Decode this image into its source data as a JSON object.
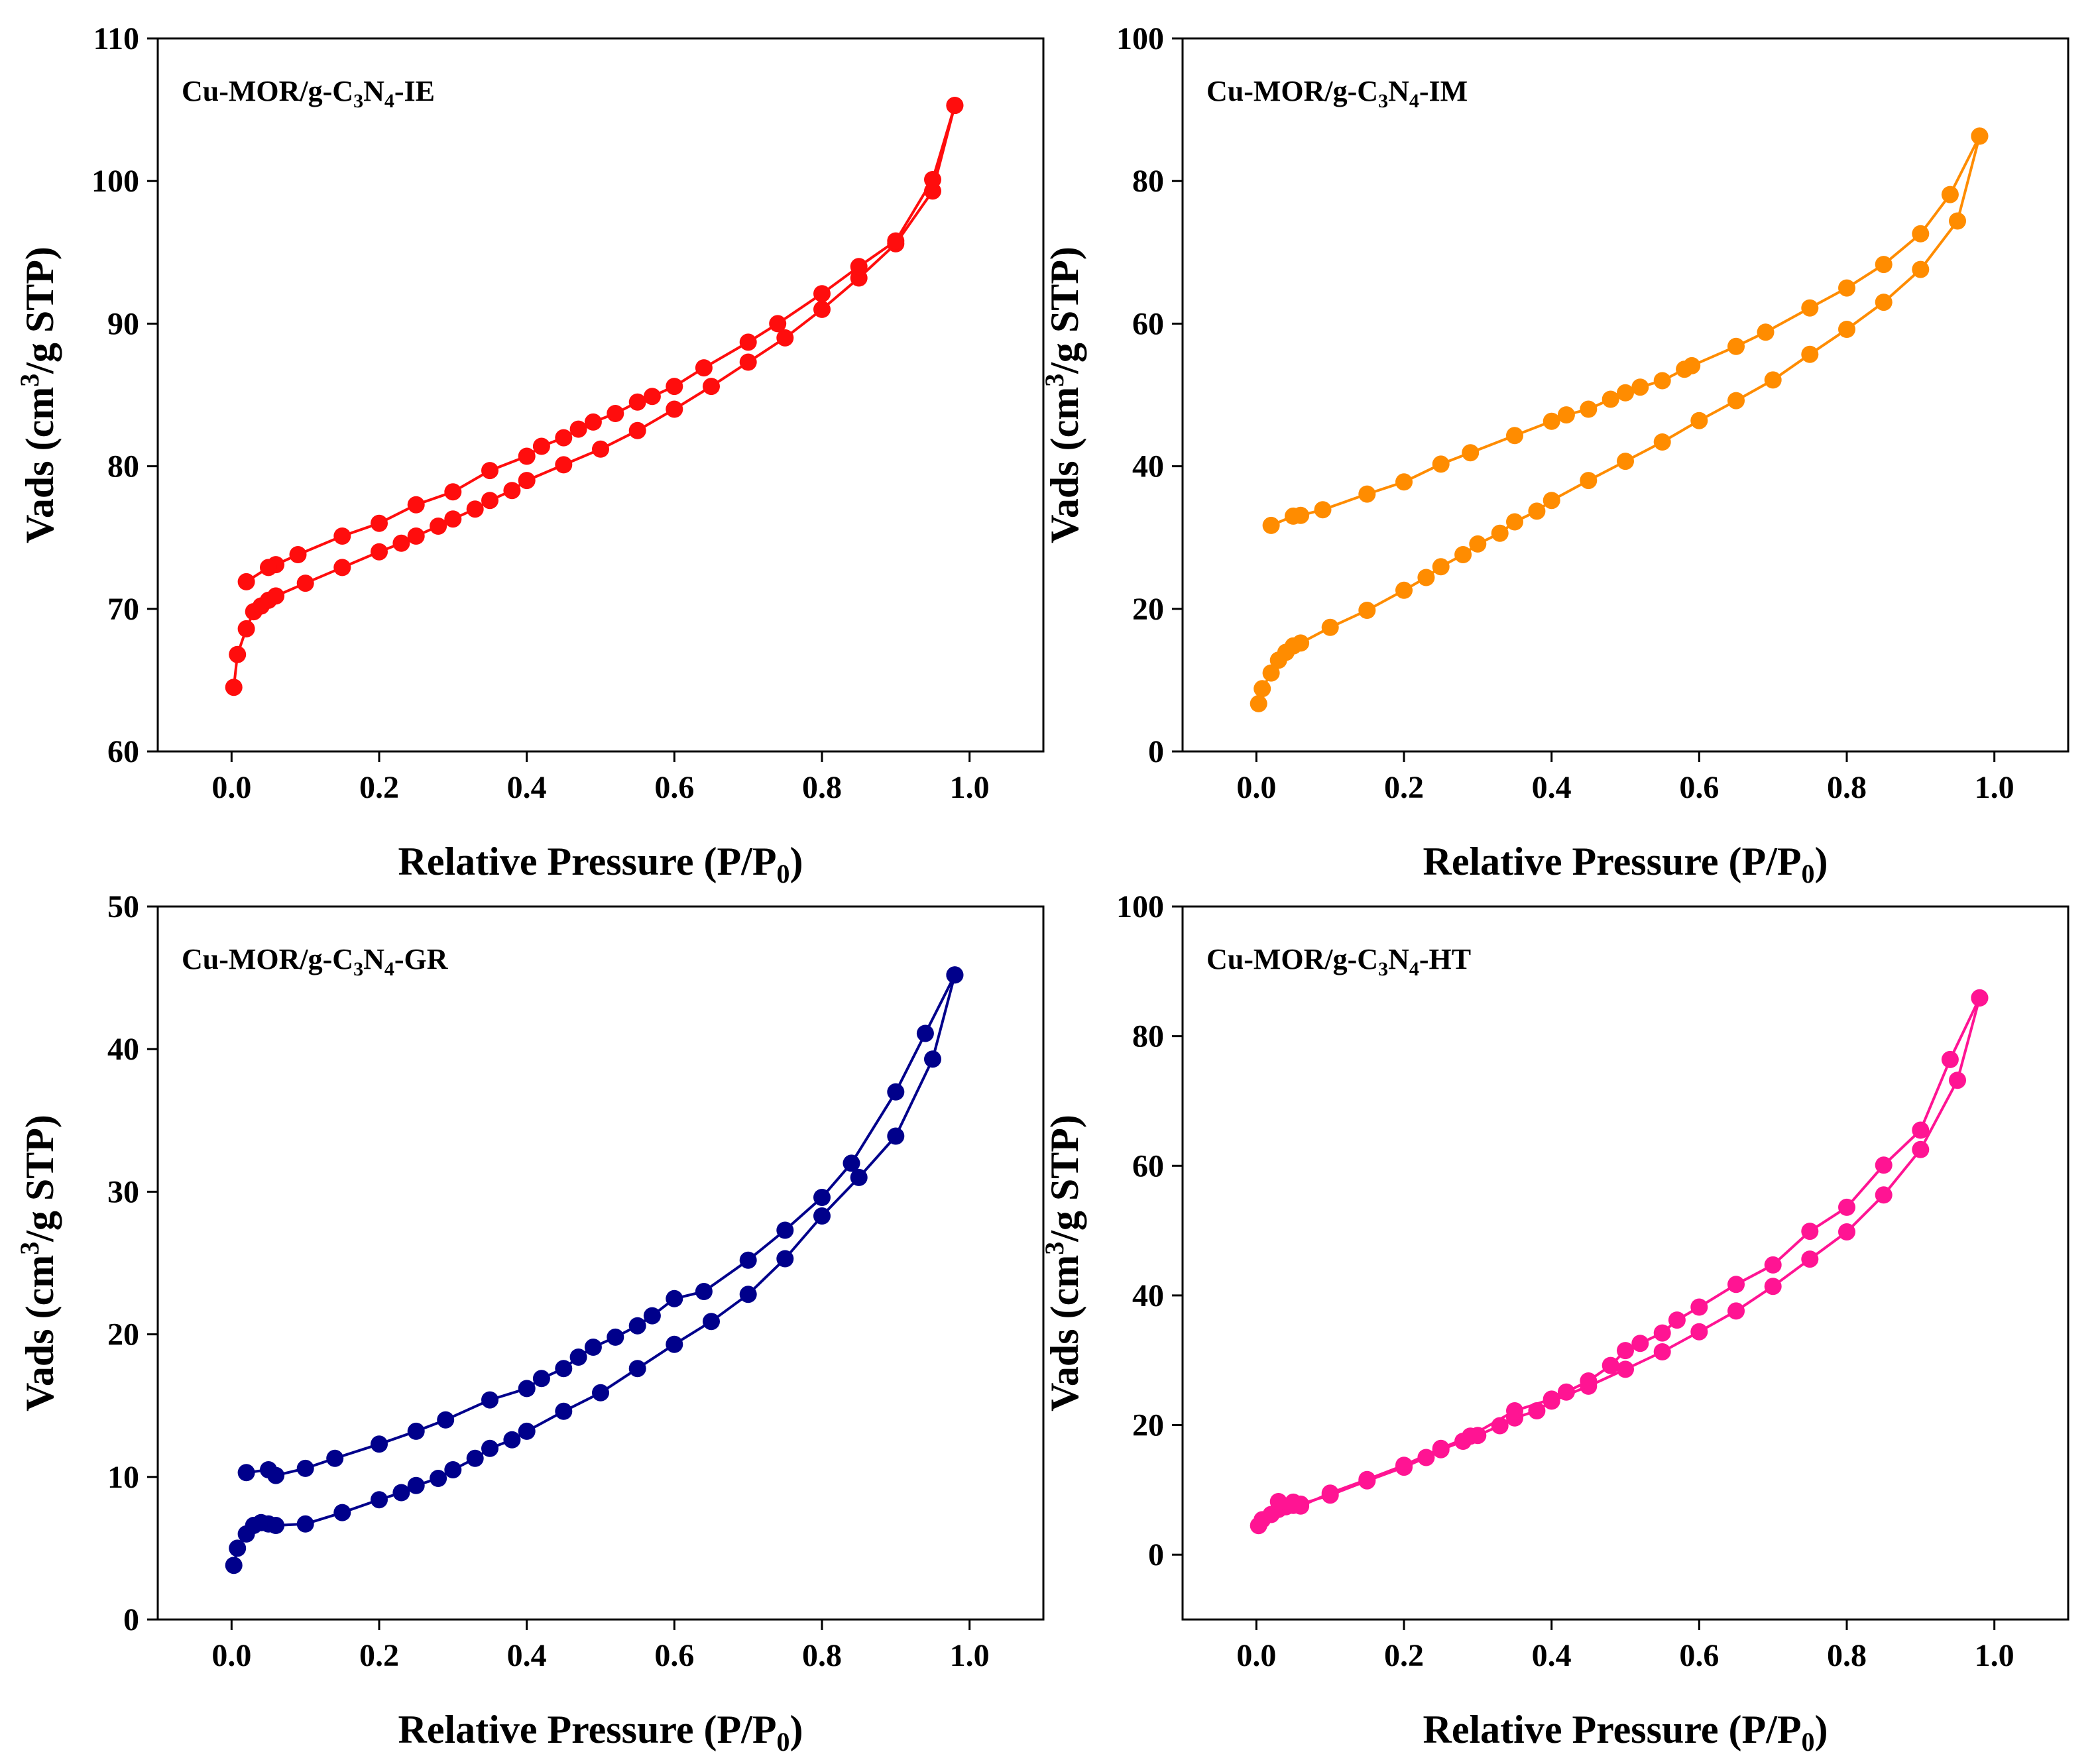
{
  "chart_data": [
    {
      "type": "scatter",
      "label_prefix": "Cu-MOR/g-C",
      "label_sub1": "3",
      "label_mid": "N",
      "label_sub2": "4",
      "label_suffix": "-IE",
      "xlabel_main": "Relative Pressure (P/P",
      "xlabel_sub": "0",
      "xlabel_end": ")",
      "ylabel_main": "Vads (cm",
      "ylabel_sup": "3",
      "ylabel_end": "/g STP)",
      "xlim": [
        -0.1,
        1.1
      ],
      "ylim": [
        60,
        110
      ],
      "xticks": [
        0.0,
        0.2,
        0.4,
        0.6,
        0.8,
        1.0
      ],
      "xtick_labels": [
        "0.0",
        "0.2",
        "0.4",
        "0.6",
        "0.8",
        "1.0"
      ],
      "yticks": [
        60,
        70,
        80,
        90,
        100,
        110
      ],
      "ytick_labels": [
        "60",
        "70",
        "80",
        "90",
        "100",
        "110"
      ],
      "color": "#ff0d0d",
      "series": [
        {
          "name": "adsorption",
          "x": [
            0.003,
            0.008,
            0.02,
            0.03,
            0.04,
            0.05,
            0.06,
            0.1,
            0.15,
            0.2,
            0.23,
            0.25,
            0.28,
            0.3,
            0.33,
            0.35,
            0.38,
            0.4,
            0.45,
            0.5,
            0.55,
            0.6,
            0.65,
            0.7,
            0.75,
            0.8,
            0.85,
            0.9,
            0.95,
            0.98
          ],
          "y": [
            64.5,
            66.8,
            68.6,
            69.8,
            70.2,
            70.6,
            70.9,
            71.8,
            72.9,
            74.0,
            74.6,
            75.1,
            75.8,
            76.3,
            77.0,
            77.6,
            78.3,
            79.0,
            80.1,
            81.2,
            82.5,
            84.0,
            85.6,
            87.3,
            89.0,
            91.0,
            93.2,
            95.6,
            99.3,
            105.3
          ]
        },
        {
          "name": "desorption",
          "x": [
            0.98,
            0.95,
            0.9,
            0.85,
            0.8,
            0.74,
            0.7,
            0.64,
            0.6,
            0.57,
            0.55,
            0.52,
            0.49,
            0.47,
            0.45,
            0.42,
            0.4,
            0.35,
            0.3,
            0.25,
            0.2,
            0.15,
            0.09,
            0.06,
            0.05,
            0.02
          ],
          "y": [
            105.3,
            100.1,
            95.8,
            94.0,
            92.1,
            90.0,
            88.7,
            86.9,
            85.6,
            84.9,
            84.5,
            83.7,
            83.1,
            82.6,
            82.0,
            81.4,
            80.7,
            79.7,
            78.2,
            77.3,
            76.0,
            75.1,
            73.8,
            73.1,
            72.9,
            71.9
          ]
        }
      ]
    },
    {
      "type": "scatter",
      "label_prefix": "Cu-MOR/g-C",
      "label_sub1": "3",
      "label_mid": "N",
      "label_sub2": "4",
      "label_suffix": "-IM",
      "xlabel_main": "Relative Pressure (P/P",
      "xlabel_sub": "0",
      "xlabel_end": ")",
      "ylabel_main": "Vads (cm",
      "ylabel_sup": "3",
      "ylabel_end": "/g STP)",
      "xlim": [
        -0.1,
        1.1
      ],
      "ylim": [
        0,
        100
      ],
      "xticks": [
        0.0,
        0.2,
        0.4,
        0.6,
        0.8,
        1.0
      ],
      "xtick_labels": [
        "0.0",
        "0.2",
        "0.4",
        "0.6",
        "0.8",
        "1.0"
      ],
      "yticks": [
        0,
        20,
        40,
        60,
        80,
        100
      ],
      "ytick_labels": [
        "0",
        "20",
        "40",
        "60",
        "80",
        "100"
      ],
      "color": "#ff8c00",
      "series": [
        {
          "name": "adsorption",
          "x": [
            0.003,
            0.008,
            0.02,
            0.03,
            0.04,
            0.05,
            0.06,
            0.1,
            0.15,
            0.2,
            0.23,
            0.25,
            0.28,
            0.3,
            0.33,
            0.35,
            0.38,
            0.4,
            0.45,
            0.5,
            0.55,
            0.6,
            0.65,
            0.7,
            0.75,
            0.8,
            0.85,
            0.9,
            0.95,
            0.98
          ],
          "y": [
            6.7,
            8.8,
            11.0,
            12.8,
            13.9,
            14.8,
            15.2,
            17.4,
            19.8,
            22.6,
            24.4,
            25.9,
            27.6,
            29.1,
            30.6,
            32.2,
            33.7,
            35.2,
            38.0,
            40.7,
            43.4,
            46.4,
            49.2,
            52.1,
            55.7,
            59.2,
            63.0,
            67.6,
            74.4,
            86.3
          ]
        },
        {
          "name": "desorption",
          "x": [
            0.98,
            0.94,
            0.9,
            0.85,
            0.8,
            0.75,
            0.69,
            0.65,
            0.59,
            0.58,
            0.55,
            0.52,
            0.5,
            0.48,
            0.45,
            0.42,
            0.4,
            0.35,
            0.29,
            0.25,
            0.2,
            0.15,
            0.09,
            0.06,
            0.05,
            0.02
          ],
          "y": [
            86.3,
            78.1,
            72.6,
            68.3,
            65.0,
            62.2,
            58.8,
            56.8,
            54.1,
            53.6,
            52.0,
            51.1,
            50.3,
            49.4,
            48.0,
            47.2,
            46.3,
            44.3,
            41.9,
            40.3,
            37.8,
            36.1,
            33.9,
            33.1,
            33.0,
            31.7
          ]
        }
      ]
    },
    {
      "type": "scatter",
      "label_prefix": "Cu-MOR/g-C",
      "label_sub1": "3",
      "label_mid": "N",
      "label_sub2": "4",
      "label_suffix": "-GR",
      "xlabel_main": "Relative Pressure (P/P",
      "xlabel_sub": "0",
      "xlabel_end": ")",
      "ylabel_main": "Vads (cm",
      "ylabel_sup": "3",
      "ylabel_end": "/g STP)",
      "xlim": [
        -0.1,
        1.1
      ],
      "ylim": [
        0,
        50
      ],
      "xticks": [
        0.0,
        0.2,
        0.4,
        0.6,
        0.8,
        1.0
      ],
      "xtick_labels": [
        "0.0",
        "0.2",
        "0.4",
        "0.6",
        "0.8",
        "1.0"
      ],
      "yticks": [
        0,
        10,
        20,
        30,
        40,
        50
      ],
      "ytick_labels": [
        "0",
        "10",
        "20",
        "30",
        "40",
        "50"
      ],
      "color": "#00008b",
      "series": [
        {
          "name": "adsorption",
          "x": [
            0.003,
            0.008,
            0.02,
            0.03,
            0.04,
            0.05,
            0.06,
            0.1,
            0.15,
            0.2,
            0.23,
            0.25,
            0.28,
            0.3,
            0.33,
            0.35,
            0.38,
            0.4,
            0.45,
            0.5,
            0.55,
            0.6,
            0.65,
            0.7,
            0.75,
            0.8,
            0.85,
            0.9,
            0.95,
            0.98
          ],
          "y": [
            3.8,
            5.0,
            6.0,
            6.6,
            6.8,
            6.7,
            6.6,
            6.7,
            7.5,
            8.4,
            8.9,
            9.4,
            9.9,
            10.5,
            11.3,
            12.0,
            12.6,
            13.2,
            14.6,
            15.9,
            17.6,
            19.3,
            20.9,
            22.8,
            25.3,
            28.3,
            31.0,
            33.9,
            39.3,
            45.2
          ]
        },
        {
          "name": "desorption",
          "x": [
            0.98,
            0.94,
            0.9,
            0.84,
            0.8,
            0.75,
            0.7,
            0.64,
            0.6,
            0.57,
            0.55,
            0.52,
            0.49,
            0.47,
            0.45,
            0.42,
            0.4,
            0.35,
            0.29,
            0.25,
            0.2,
            0.14,
            0.1,
            0.06,
            0.05,
            0.02
          ],
          "y": [
            45.2,
            41.1,
            37.0,
            32.0,
            29.6,
            27.3,
            25.2,
            23.0,
            22.5,
            21.3,
            20.6,
            19.8,
            19.1,
            18.4,
            17.6,
            16.9,
            16.2,
            15.4,
            14.0,
            13.2,
            12.3,
            11.3,
            10.6,
            10.1,
            10.5,
            10.3
          ]
        }
      ]
    },
    {
      "type": "scatter",
      "label_prefix": "Cu-MOR/g-C",
      "label_sub1": "3",
      "label_mid": "N",
      "label_sub2": "4",
      "label_suffix": "-HT",
      "xlabel_main": "Relative Pressure (P/P",
      "xlabel_sub": "0",
      "xlabel_end": ")",
      "ylabel_main": "Vads (cm",
      "ylabel_sup": "3",
      "ylabel_end": "/g STP)",
      "xlim": [
        -0.1,
        1.1
      ],
      "ylim": [
        -10,
        100
      ],
      "xticks": [
        0.0,
        0.2,
        0.4,
        0.6,
        0.8,
        1.0
      ],
      "xtick_labels": [
        "0.0",
        "0.2",
        "0.4",
        "0.6",
        "0.8",
        "1.0"
      ],
      "yticks": [
        0,
        20,
        40,
        60,
        80,
        100
      ],
      "ytick_labels": [
        "0",
        "20",
        "40",
        "60",
        "80",
        "100"
      ],
      "color": "#ff1493",
      "series": [
        {
          "name": "adsorption",
          "x": [
            0.003,
            0.008,
            0.02,
            0.03,
            0.04,
            0.05,
            0.06,
            0.1,
            0.15,
            0.2,
            0.23,
            0.25,
            0.28,
            0.3,
            0.33,
            0.35,
            0.38,
            0.4,
            0.45,
            0.5,
            0.55,
            0.6,
            0.65,
            0.7,
            0.75,
            0.8,
            0.85,
            0.9,
            0.95,
            0.98
          ],
          "y": [
            4.5,
            5.4,
            6.2,
            7.0,
            7.4,
            7.6,
            7.8,
            9.2,
            11.4,
            13.5,
            15.0,
            16.2,
            17.5,
            18.4,
            19.9,
            21.1,
            22.2,
            23.7,
            26.0,
            28.6,
            31.3,
            34.4,
            37.6,
            41.4,
            45.6,
            49.8,
            55.5,
            62.5,
            73.2,
            85.9
          ]
        },
        {
          "name": "desorption",
          "x": [
            0.98,
            0.94,
            0.9,
            0.85,
            0.8,
            0.75,
            0.7,
            0.65,
            0.6,
            0.57,
            0.55,
            0.52,
            0.5,
            0.48,
            0.45,
            0.42,
            0.4,
            0.35,
            0.29,
            0.25,
            0.2,
            0.15,
            0.1,
            0.06,
            0.05,
            0.03
          ],
          "y": [
            85.9,
            76.4,
            65.5,
            60.1,
            53.6,
            49.9,
            44.7,
            41.7,
            38.2,
            36.2,
            34.2,
            32.6,
            31.5,
            29.2,
            26.8,
            25.1,
            24.0,
            22.2,
            18.3,
            16.4,
            13.8,
            11.6,
            9.5,
            7.5,
            8.1,
            8.2
          ]
        }
      ]
    }
  ]
}
